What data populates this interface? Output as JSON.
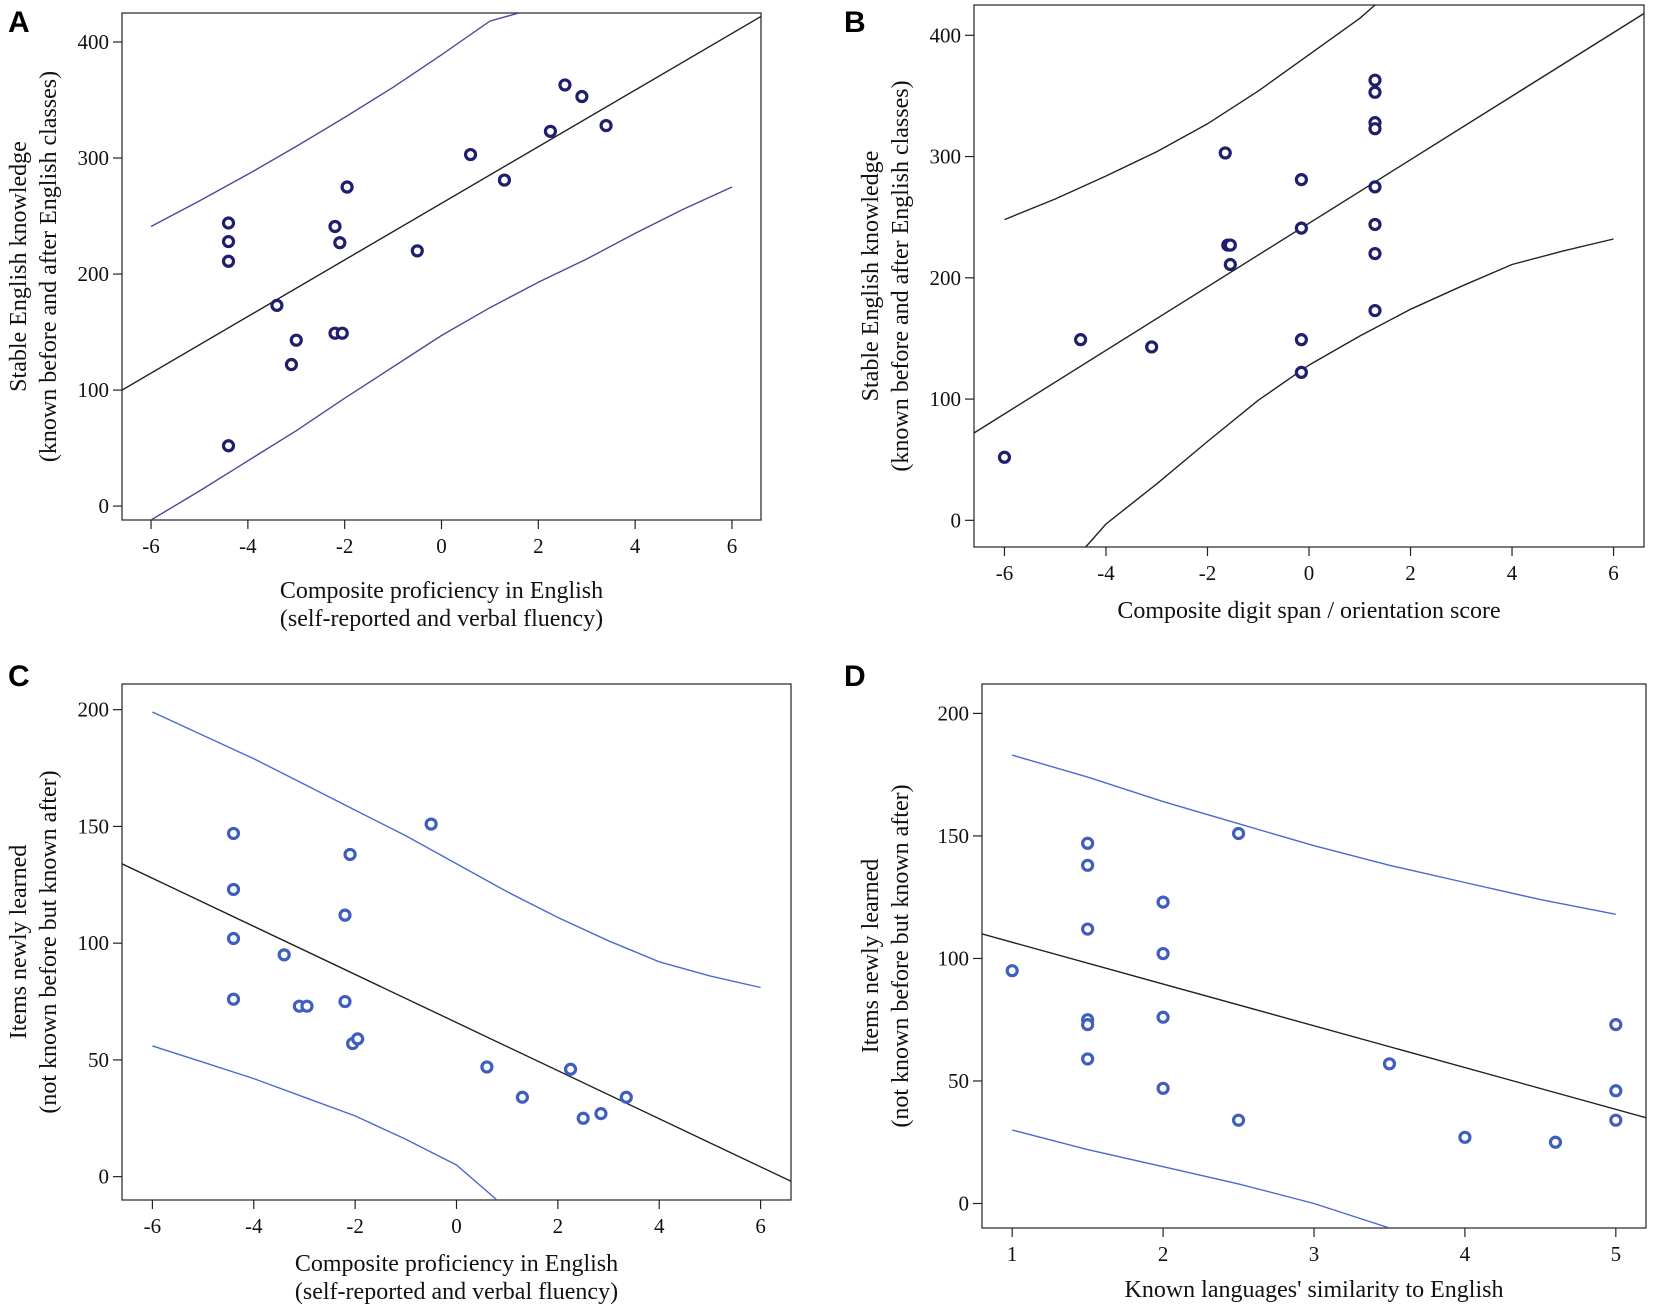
{
  "chart_data": [
    {
      "panel": "A",
      "type": "scatter",
      "xlabel": [
        "Composite proficiency in English",
        "(self-reported and verbal fluency)"
      ],
      "ylabel": [
        "Stable English knowledge",
        "(known before and after English classes)"
      ],
      "xlim": [
        -6.6,
        6.6
      ],
      "ylim": [
        -12,
        425
      ],
      "xticks": [
        -6,
        -4,
        -2,
        0,
        2,
        4,
        6
      ],
      "yticks": [
        0,
        100,
        200,
        300,
        400
      ],
      "marker_color": "#1f1f6e",
      "fit_color": "#222222",
      "band_color": "#4a4a9c",
      "fit": [
        [
          -6.6,
          100
        ],
        [
          6.6,
          422
        ]
      ],
      "upper_band": [
        [
          -6,
          241
        ],
        [
          -5,
          263
        ],
        [
          -4,
          286
        ],
        [
          -3,
          310
        ],
        [
          -2,
          335
        ],
        [
          -1,
          361
        ],
        [
          0,
          389
        ],
        [
          1,
          418
        ],
        [
          1.6,
          425
        ]
      ],
      "lower_band": [
        [
          -6,
          -12
        ],
        [
          -5,
          13
        ],
        [
          -4,
          39
        ],
        [
          -3,
          65
        ],
        [
          -2,
          93
        ],
        [
          -1,
          120
        ],
        [
          0,
          147
        ],
        [
          1,
          171
        ],
        [
          2,
          193
        ],
        [
          3,
          213
        ],
        [
          4,
          235
        ],
        [
          5,
          256
        ],
        [
          6,
          275
        ]
      ],
      "points": [
        [
          -4.4,
          244
        ],
        [
          -4.4,
          228
        ],
        [
          -4.4,
          211
        ],
        [
          -4.4,
          52
        ],
        [
          -3.4,
          173
        ],
        [
          -3.0,
          143
        ],
        [
          -3.1,
          122
        ],
        [
          -2.2,
          241
        ],
        [
          -2.1,
          227
        ],
        [
          -2.2,
          149
        ],
        [
          -2.05,
          149
        ],
        [
          -1.95,
          275
        ],
        [
          -0.5,
          220
        ],
        [
          0.6,
          303
        ],
        [
          1.3,
          281
        ],
        [
          2.25,
          323
        ],
        [
          2.55,
          363
        ],
        [
          2.9,
          353
        ],
        [
          3.4,
          328
        ]
      ]
    },
    {
      "panel": "B",
      "type": "scatter",
      "xlabel": [
        "Composite digit span / orientation score"
      ],
      "ylabel": [
        "Stable English knowledge",
        "(known before and after English classes)"
      ],
      "xlim": [
        -6.6,
        6.6
      ],
      "ylim": [
        -22,
        425
      ],
      "xticks": [
        -6,
        -4,
        -2,
        0,
        2,
        4,
        6
      ],
      "yticks": [
        0,
        100,
        200,
        300,
        400
      ],
      "marker_color": "#1f1f6e",
      "fit_color": "#222222",
      "band_color": "#222222",
      "fit": [
        [
          -6.6,
          72
        ],
        [
          6.6,
          418
        ]
      ],
      "upper_band": [
        [
          -6,
          248
        ],
        [
          -5,
          265
        ],
        [
          -4,
          284
        ],
        [
          -3,
          304
        ],
        [
          -2,
          327
        ],
        [
          -1,
          354
        ],
        [
          0,
          384
        ],
        [
          1,
          414
        ],
        [
          1.3,
          425
        ]
      ],
      "lower_band": [
        [
          -4.4,
          -22
        ],
        [
          -4,
          -3
        ],
        [
          -3,
          30
        ],
        [
          -2,
          65
        ],
        [
          -1,
          99
        ],
        [
          0,
          128
        ],
        [
          1,
          152
        ],
        [
          2,
          174
        ],
        [
          3,
          193
        ],
        [
          4,
          211
        ],
        [
          5,
          222
        ],
        [
          6,
          232
        ]
      ],
      "points": [
        [
          -6.0,
          52
        ],
        [
          -4.5,
          149
        ],
        [
          -3.1,
          143
        ],
        [
          -1.65,
          303
        ],
        [
          -1.6,
          227
        ],
        [
          -1.55,
          227
        ],
        [
          -1.55,
          211
        ],
        [
          -0.15,
          281
        ],
        [
          -0.15,
          241
        ],
        [
          -0.15,
          149
        ],
        [
          -0.15,
          122
        ],
        [
          1.3,
          363
        ],
        [
          1.3,
          353
        ],
        [
          1.3,
          328
        ],
        [
          1.3,
          323
        ],
        [
          1.3,
          275
        ],
        [
          1.3,
          244
        ],
        [
          1.3,
          220
        ],
        [
          1.3,
          173
        ]
      ]
    },
    {
      "panel": "C",
      "type": "scatter",
      "xlabel": [
        "Composite proficiency in English",
        "(self-reported and verbal fluency)"
      ],
      "ylabel": [
        "Items newly learned",
        "(not known before but known after)"
      ],
      "xlim": [
        -6.6,
        6.6
      ],
      "ylim": [
        -10,
        211
      ],
      "xticks": [
        -6,
        -4,
        -2,
        0,
        2,
        4,
        6
      ],
      "yticks": [
        0,
        50,
        100,
        150,
        200
      ],
      "marker_color": "#3f5fbf",
      "fit_color": "#222222",
      "band_color": "#4a6ad0",
      "fit": [
        [
          -6.6,
          134
        ],
        [
          6.6,
          -2
        ]
      ],
      "upper_band": [
        [
          -6,
          199
        ],
        [
          -5,
          189
        ],
        [
          -4,
          179
        ],
        [
          -3,
          168
        ],
        [
          -2,
          157
        ],
        [
          -1,
          146
        ],
        [
          0,
          134
        ],
        [
          1,
          122
        ],
        [
          2,
          111
        ],
        [
          3,
          101
        ],
        [
          4,
          92
        ],
        [
          5,
          86
        ],
        [
          6,
          81
        ]
      ],
      "lower_band": [
        [
          -6,
          56
        ],
        [
          -5,
          49
        ],
        [
          -4,
          42
        ],
        [
          -3,
          34
        ],
        [
          -2,
          26
        ],
        [
          -1,
          16
        ],
        [
          0,
          5
        ],
        [
          0.8,
          -10
        ]
      ],
      "points": [
        [
          -4.4,
          147
        ],
        [
          -4.4,
          123
        ],
        [
          -4.4,
          102
        ],
        [
          -4.4,
          76
        ],
        [
          -3.4,
          95
        ],
        [
          -3.1,
          73
        ],
        [
          -2.95,
          73
        ],
        [
          -2.2,
          75
        ],
        [
          -2.1,
          138
        ],
        [
          -2.2,
          112
        ],
        [
          -2.05,
          57
        ],
        [
          -1.95,
          59
        ],
        [
          -0.5,
          151
        ],
        [
          0.6,
          47
        ],
        [
          1.3,
          34
        ],
        [
          2.25,
          46
        ],
        [
          2.5,
          25
        ],
        [
          2.85,
          27
        ],
        [
          3.35,
          34
        ]
      ]
    },
    {
      "panel": "D",
      "type": "scatter",
      "xlabel": [
        "Known languages' similarity to English"
      ],
      "ylabel": [
        "Items newly learned",
        "(not known before but known after)"
      ],
      "xlim": [
        0.8,
        5.2
      ],
      "ylim": [
        -10,
        212
      ],
      "xticks": [
        1,
        2,
        3,
        4,
        5
      ],
      "yticks": [
        0,
        50,
        100,
        150,
        200
      ],
      "marker_color": "#3f5fbf",
      "fit_color": "#222222",
      "band_color": "#4a6ad0",
      "fit": [
        [
          0.8,
          110
        ],
        [
          5.2,
          35
        ]
      ],
      "upper_band": [
        [
          1,
          183
        ],
        [
          1.5,
          174
        ],
        [
          2,
          164
        ],
        [
          2.5,
          155
        ],
        [
          3,
          146
        ],
        [
          3.5,
          138
        ],
        [
          4,
          131
        ],
        [
          4.5,
          124
        ],
        [
          5,
          118
        ]
      ],
      "lower_band": [
        [
          1,
          30
        ],
        [
          1.5,
          22
        ],
        [
          2,
          15
        ],
        [
          2.5,
          8
        ],
        [
          3,
          0
        ],
        [
          3.5,
          -10
        ]
      ],
      "points": [
        [
          1.0,
          95
        ],
        [
          1.5,
          147
        ],
        [
          1.5,
          138
        ],
        [
          1.5,
          112
        ],
        [
          1.5,
          75
        ],
        [
          1.5,
          73
        ],
        [
          1.5,
          59
        ],
        [
          2.0,
          123
        ],
        [
          2.0,
          102
        ],
        [
          2.0,
          76
        ],
        [
          2.0,
          47
        ],
        [
          2.5,
          151
        ],
        [
          2.5,
          34
        ],
        [
          3.5,
          57
        ],
        [
          4.0,
          27
        ],
        [
          4.6,
          25
        ],
        [
          5.0,
          73
        ],
        [
          5.0,
          46
        ],
        [
          5.0,
          34
        ]
      ]
    }
  ]
}
